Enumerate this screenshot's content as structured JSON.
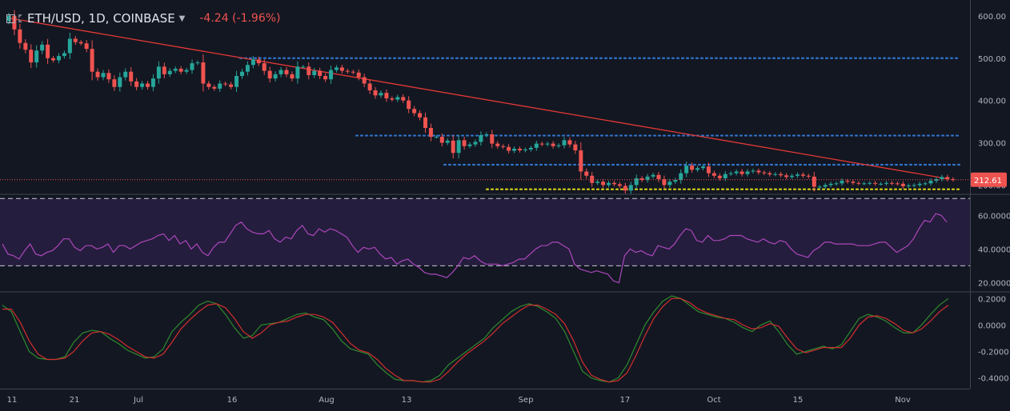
{
  "header": {
    "symbol": "ETH/USD, 1D, COINBASE",
    "change": "-4.24 (-1.96%)"
  },
  "colors": {
    "background": "#131722",
    "up": "#26a69a",
    "down": "#ef5350",
    "trendline": "#e53935",
    "hline_blue": "#2f73c9",
    "hline_yellow": "#d7d21a",
    "rsi": "#ab47bc",
    "rsi_band": "#2a1f45",
    "stoch_k": "#2e8b2e",
    "stoch_d": "#d32f2f",
    "axis_text": "#b2b5be"
  },
  "chart_data": [
    {
      "type": "candlestick",
      "symbol": "ETH/USD",
      "interval": "1D",
      "exchange": "COINBASE",
      "x_ticks": [
        "11",
        "21",
        "Jul",
        "16",
        "Aug",
        "13",
        "Sep",
        "17",
        "Oct",
        "15",
        "Nov"
      ],
      "y_ticks": [
        "600.00",
        "500.00",
        "400.00",
        "300.00",
        "200.00"
      ],
      "ylim": [
        180,
        630
      ],
      "last_price_label": "212.61",
      "last_price": 212.61,
      "candles_close": [
        600,
        568,
        536,
        520,
        490,
        518,
        532,
        500,
        495,
        505,
        512,
        546,
        538,
        535,
        522,
        468,
        455,
        465,
        450,
        432,
        455,
        468,
        445,
        432,
        440,
        432,
        452,
        480,
        462,
        470,
        475,
        468,
        472,
        488,
        490,
        440,
        432,
        428,
        440,
        438,
        432,
        458,
        468,
        484,
        497,
        488,
        470,
        452,
        462,
        472,
        462,
        452,
        480,
        480,
        460,
        470,
        458,
        450,
        472,
        478,
        470,
        468,
        466,
        455,
        440,
        424,
        412,
        418,
        405,
        402,
        408,
        400,
        380,
        370,
        360,
        335,
        314,
        314,
        300,
        305,
        276,
        306,
        292,
        296,
        302,
        318,
        320,
        298,
        292,
        290,
        281,
        286,
        282,
        284,
        288,
        298,
        296,
        298,
        292,
        294,
        306,
        296,
        282,
        232,
        222,
        205,
        208,
        200,
        205,
        202,
        198,
        187,
        200,
        216,
        212,
        220,
        224,
        214,
        200,
        208,
        212,
        228,
        246,
        236,
        240,
        244,
        228,
        222,
        216,
        226,
        228,
        232,
        226,
        232,
        234,
        230,
        228,
        225,
        226,
        223,
        219,
        222,
        225,
        222,
        220,
        196,
        196,
        200,
        203,
        204,
        210,
        208,
        205,
        204,
        204,
        205,
        203,
        203,
        205,
        204,
        203,
        197,
        199,
        200,
        203,
        204,
        210,
        214,
        219,
        214,
        212.61
      ],
      "hlines": [
        {
          "value": 500,
          "color": "blue"
        },
        {
          "value": 317,
          "color": "blue"
        },
        {
          "value": 248,
          "color": "blue"
        },
        {
          "value": 190,
          "color": "yellow"
        }
      ],
      "trendline": {
        "from": {
          "day": 0,
          "value": 595
        },
        "to": {
          "day": 169,
          "value": 215
        }
      }
    },
    {
      "type": "line",
      "name": "RSI",
      "y_ticks": [
        "60.0000",
        "40.0000",
        "20.0000"
      ],
      "ylim": [
        15,
        72
      ],
      "bands": [
        30,
        70
      ],
      "values": [
        43,
        37,
        36,
        34,
        39,
        43,
        37,
        36,
        38,
        39,
        42,
        46,
        46,
        41,
        39,
        42,
        42,
        40,
        41,
        43,
        38,
        42,
        42,
        40,
        42,
        44,
        45,
        46,
        48,
        49,
        45,
        48,
        43,
        45,
        40,
        43,
        38,
        36,
        41,
        44,
        44,
        49,
        54,
        56,
        52,
        50,
        49,
        49,
        51,
        46,
        44,
        47,
        46,
        51,
        54,
        49,
        48,
        52,
        50,
        52,
        51,
        49,
        47,
        42,
        38,
        41,
        40,
        41,
        37,
        34,
        35,
        31,
        33,
        34,
        31,
        29,
        26,
        25,
        25,
        24,
        23,
        26,
        30,
        35,
        34,
        36,
        33,
        31,
        31,
        31,
        30,
        31,
        32,
        34,
        34,
        37,
        40,
        42,
        42,
        44,
        44,
        42,
        40,
        31,
        28,
        27,
        26,
        27,
        26,
        25,
        21,
        20,
        36,
        40,
        38,
        39,
        37,
        36,
        42,
        41,
        40,
        43,
        48,
        52,
        51,
        45,
        44,
        48,
        45,
        45,
        46,
        48,
        48,
        48,
        46,
        45,
        44,
        46,
        44,
        43,
        45,
        44,
        40,
        37,
        36,
        35,
        39,
        41,
        44,
        44,
        43,
        43,
        43,
        43,
        42,
        42,
        42,
        43,
        44,
        44,
        41,
        38,
        40,
        42,
        46,
        52,
        57,
        56,
        61,
        60,
        56
      ]
    },
    {
      "type": "line",
      "name": "Stochastic",
      "y_ticks": [
        "0.2000",
        "0.0000",
        "-0.2000",
        "-0.4000"
      ],
      "ylim": [
        -0.45,
        0.22
      ],
      "series": [
        {
          "name": "K",
          "values": [
            0.15,
            0.1,
            -0.05,
            -0.2,
            -0.25,
            -0.26,
            -0.26,
            -0.24,
            -0.13,
            -0.06,
            -0.04,
            -0.05,
            -0.1,
            -0.14,
            -0.19,
            -0.22,
            -0.25,
            -0.24,
            -0.18,
            -0.05,
            0.02,
            0.08,
            0.15,
            0.18,
            0.16,
            0.08,
            -0.02,
            -0.1,
            -0.08,
            0.0,
            0.01,
            0.02,
            0.05,
            0.08,
            0.09,
            0.06,
            0.04,
            -0.03,
            -0.12,
            -0.18,
            -0.2,
            -0.22,
            -0.3,
            -0.36,
            -0.41,
            -0.42,
            -0.42,
            -0.43,
            -0.42,
            -0.38,
            -0.3,
            -0.25,
            -0.2,
            -0.15,
            -0.1,
            -0.02,
            0.04,
            0.1,
            0.14,
            0.16,
            0.14,
            0.1,
            0.05,
            -0.05,
            -0.2,
            -0.35,
            -0.4,
            -0.42,
            -0.43,
            -0.4,
            -0.3,
            -0.15,
            0.0,
            0.1,
            0.18,
            0.22,
            0.2,
            0.15,
            0.1,
            0.08,
            0.06,
            0.05,
            0.02,
            -0.02,
            -0.05,
            0.0,
            0.03,
            -0.05,
            -0.15,
            -0.22,
            -0.2,
            -0.18,
            -0.16,
            -0.18,
            -0.15,
            -0.05,
            0.05,
            0.08,
            0.06,
            0.03,
            -0.02,
            -0.06,
            -0.06,
            0.0,
            0.08,
            0.15,
            0.2
          ]
        },
        {
          "name": "D",
          "values": [
            0.12,
            0.12,
            0.02,
            -0.12,
            -0.22,
            -0.26,
            -0.26,
            -0.25,
            -0.2,
            -0.12,
            -0.06,
            -0.05,
            -0.07,
            -0.11,
            -0.16,
            -0.2,
            -0.24,
            -0.25,
            -0.22,
            -0.13,
            -0.03,
            0.04,
            0.1,
            0.15,
            0.16,
            0.13,
            0.05,
            -0.05,
            -0.1,
            -0.06,
            0.0,
            0.02,
            0.03,
            0.06,
            0.08,
            0.08,
            0.06,
            0.02,
            -0.06,
            -0.14,
            -0.19,
            -0.21,
            -0.26,
            -0.33,
            -0.38,
            -0.42,
            -0.42,
            -0.43,
            -0.43,
            -0.41,
            -0.35,
            -0.28,
            -0.22,
            -0.17,
            -0.12,
            -0.06,
            0.01,
            0.06,
            0.11,
            0.15,
            0.15,
            0.12,
            0.08,
            0.01,
            -0.12,
            -0.28,
            -0.38,
            -0.41,
            -0.43,
            -0.42,
            -0.36,
            -0.23,
            -0.08,
            0.05,
            0.14,
            0.2,
            0.2,
            0.17,
            0.12,
            0.09,
            0.07,
            0.05,
            0.04,
            0.0,
            -0.03,
            -0.02,
            0.01,
            -0.01,
            -0.1,
            -0.18,
            -0.21,
            -0.19,
            -0.17,
            -0.17,
            -0.17,
            -0.1,
            0.0,
            0.06,
            0.07,
            0.05,
            0.01,
            -0.04,
            -0.06,
            -0.03,
            0.03,
            0.1,
            0.15
          ]
        }
      ]
    }
  ]
}
